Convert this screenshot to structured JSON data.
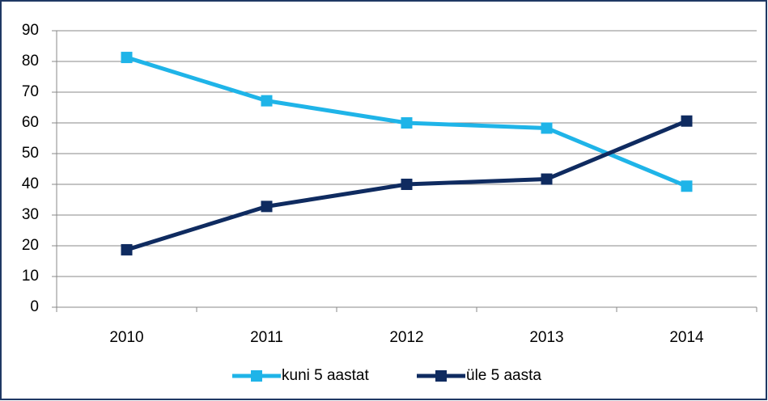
{
  "chart_data": {
    "type": "line",
    "categories": [
      "2010",
      "2011",
      "2012",
      "2013",
      "2014"
    ],
    "series": [
      {
        "name": "kuni 5 aastat",
        "color": "#1fb4e8",
        "values": [
          81.3,
          67.2,
          60,
          58.3,
          39.4
        ]
      },
      {
        "name": "üle 5 aasta",
        "color": "#0f2b60",
        "values": [
          18.7,
          32.8,
          40,
          41.7,
          60.6
        ]
      }
    ],
    "ylim": [
      0,
      90
    ],
    "yticks": [
      0,
      10,
      20,
      30,
      40,
      50,
      60,
      70,
      80,
      90
    ],
    "grid": true,
    "legend": "bottom"
  }
}
